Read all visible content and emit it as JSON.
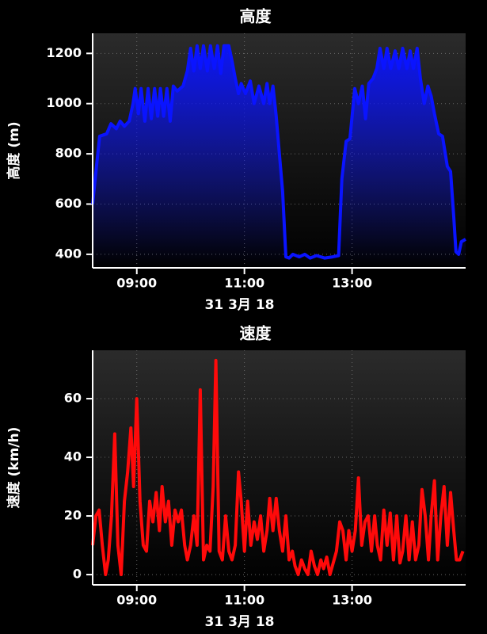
{
  "chart_data": [
    {
      "type": "area",
      "title": "高度",
      "xlabel": "31 3月 18",
      "ylabel": "高度 (m)",
      "color": "#0a14ff",
      "grid": true,
      "xlim": [
        8.18,
        15.11
      ],
      "ylim": [
        346,
        1280
      ],
      "xticks": [
        {
          "value": 9,
          "label": "09:00"
        },
        {
          "value": 11,
          "label": "11:00"
        },
        {
          "value": 13,
          "label": "13:00"
        }
      ],
      "yticks": [
        400,
        600,
        800,
        1000,
        1200
      ],
      "x": [
        8.18,
        8.25,
        8.31,
        8.44,
        8.52,
        8.62,
        8.69,
        8.77,
        8.86,
        8.93,
        8.97,
        9.03,
        9.08,
        9.15,
        9.21,
        9.27,
        9.33,
        9.39,
        9.44,
        9.5,
        9.56,
        9.62,
        9.68,
        9.75,
        9.86,
        9.94,
        10.0,
        10.06,
        10.12,
        10.18,
        10.24,
        10.31,
        10.37,
        10.44,
        10.5,
        10.56,
        10.62,
        10.71,
        10.77,
        10.83,
        10.89,
        10.94,
        11.02,
        11.11,
        11.18,
        11.27,
        11.36,
        11.42,
        11.47,
        11.53,
        11.59,
        11.65,
        11.71,
        11.77,
        11.83,
        11.9,
        12.02,
        12.12,
        12.22,
        12.34,
        12.49,
        12.64,
        12.75,
        12.81,
        12.89,
        12.96,
        13.05,
        13.12,
        13.19,
        13.25,
        13.31,
        13.39,
        13.46,
        13.52,
        13.59,
        13.65,
        13.72,
        13.8,
        13.87,
        13.94,
        14.02,
        14.08,
        14.14,
        14.21,
        14.27,
        14.34,
        14.41,
        14.47,
        14.53,
        14.61,
        14.68,
        14.77,
        14.83,
        14.89,
        14.93,
        14.98,
        15.03,
        15.11
      ],
      "values": [
        600,
        750,
        870,
        880,
        920,
        900,
        930,
        910,
        930,
        1000,
        1060,
        960,
        1060,
        930,
        1060,
        940,
        1060,
        950,
        1060,
        950,
        1060,
        930,
        1070,
        1050,
        1070,
        1130,
        1220,
        1130,
        1230,
        1140,
        1230,
        1130,
        1230,
        1140,
        1230,
        1120,
        1230,
        1230,
        1170,
        1100,
        1040,
        1080,
        1040,
        1090,
        1000,
        1070,
        1000,
        1080,
        1000,
        1070,
        950,
        800,
        650,
        390,
        385,
        400,
        390,
        400,
        385,
        395,
        385,
        390,
        395,
        700,
        850,
        860,
        1060,
        1000,
        1070,
        940,
        1080,
        1100,
        1140,
        1220,
        1140,
        1220,
        1140,
        1210,
        1140,
        1220,
        1140,
        1210,
        1140,
        1220,
        1100,
        1000,
        1070,
        1030,
        960,
        880,
        870,
        750,
        730,
        550,
        410,
        400,
        450,
        460
      ]
    },
    {
      "type": "line",
      "title": "速度",
      "xlabel": "31 3月 18",
      "ylabel": "速度 (km/h)",
      "color": "#ff0a0a",
      "grid": true,
      "xlim": [
        8.18,
        15.11
      ],
      "ylim": [
        -3.5,
        76.5
      ],
      "xticks": [
        {
          "value": 9,
          "label": "09:00"
        },
        {
          "value": 11,
          "label": "11:00"
        },
        {
          "value": 13,
          "label": "13:00"
        }
      ],
      "yticks": [
        0,
        20,
        40,
        60
      ],
      "x": [
        8.18,
        8.24,
        8.3,
        8.36,
        8.42,
        8.47,
        8.53,
        8.59,
        8.65,
        8.71,
        8.77,
        8.83,
        8.89,
        8.94,
        9.0,
        9.06,
        9.12,
        9.18,
        9.24,
        9.3,
        9.36,
        9.42,
        9.47,
        9.53,
        9.59,
        9.65,
        9.71,
        9.77,
        9.83,
        9.89,
        9.94,
        10.0,
        10.06,
        10.12,
        10.18,
        10.24,
        10.3,
        10.36,
        10.42,
        10.47,
        10.53,
        10.59,
        10.65,
        10.71,
        10.77,
        10.83,
        10.89,
        10.94,
        11.0,
        11.06,
        11.12,
        11.18,
        11.24,
        11.3,
        11.36,
        11.42,
        11.47,
        11.53,
        11.59,
        11.65,
        11.71,
        11.77,
        11.83,
        11.89,
        11.94,
        12.0,
        12.06,
        12.12,
        12.18,
        12.24,
        12.3,
        12.36,
        12.42,
        12.47,
        12.53,
        12.59,
        12.65,
        12.71,
        12.77,
        12.83,
        12.89,
        12.94,
        13.0,
        13.06,
        13.12,
        13.18,
        13.24,
        13.3,
        13.36,
        13.42,
        13.47,
        13.53,
        13.59,
        13.65,
        13.71,
        13.77,
        13.83,
        13.89,
        13.94,
        14.0,
        14.06,
        14.12,
        14.18,
        14.24,
        14.3,
        14.36,
        14.42,
        14.47,
        14.53,
        14.59,
        14.65,
        14.71,
        14.77,
        14.83,
        14.89,
        14.94,
        15.0,
        15.06
      ],
      "values": [
        10,
        20,
        22,
        10,
        0,
        5,
        20,
        48,
        10,
        0,
        25,
        35,
        50,
        30,
        60,
        25,
        10,
        8,
        25,
        18,
        28,
        15,
        30,
        18,
        25,
        10,
        22,
        18,
        22,
        10,
        5,
        10,
        20,
        10,
        63,
        5,
        10,
        8,
        30,
        73,
        8,
        5,
        20,
        8,
        5,
        10,
        35,
        25,
        8,
        25,
        10,
        18,
        12,
        20,
        8,
        15,
        26,
        15,
        26,
        15,
        8,
        20,
        5,
        8,
        3,
        0,
        5,
        2,
        0,
        8,
        3,
        0,
        5,
        2,
        6,
        0,
        4,
        8,
        18,
        15,
        5,
        15,
        8,
        15,
        33,
        10,
        18,
        20,
        8,
        20,
        10,
        5,
        22,
        10,
        21,
        5,
        20,
        4,
        8,
        20,
        5,
        18,
        5,
        10,
        29,
        20,
        5,
        20,
        32,
        5,
        20,
        30,
        10,
        28,
        15,
        5,
        5,
        8
      ]
    }
  ]
}
